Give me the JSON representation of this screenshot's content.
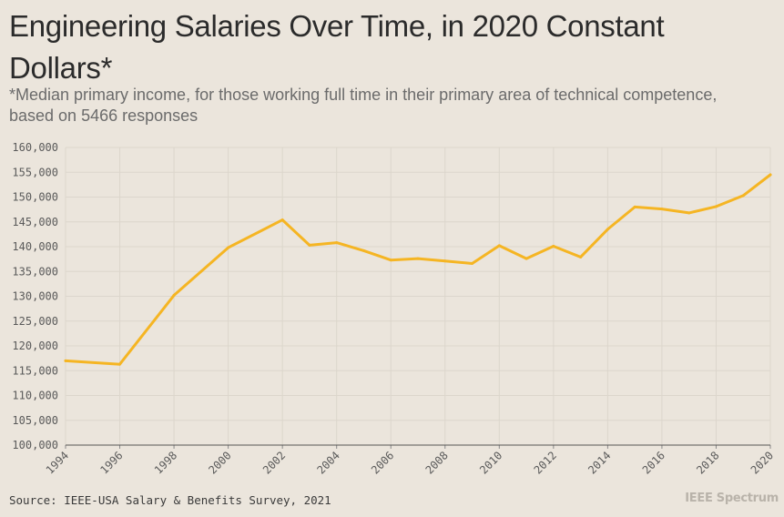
{
  "chart_data": {
    "type": "line",
    "title": "Engineering Salaries Over Time, in 2020 Constant Dollars*",
    "subtitle": "*Median primary income, for those working full time in their primary area of technical competence, based on 5466 responses",
    "source": "Source: IEEE-USA Salary & Benefits Survey, 2021",
    "brand": "IEEE Spectrum",
    "xlabel": "",
    "ylabel": "",
    "xlim": [
      1994,
      2020
    ],
    "ylim": [
      100000,
      160000
    ],
    "x_ticks": [
      1994,
      1996,
      1998,
      2000,
      2002,
      2004,
      2006,
      2008,
      2010,
      2012,
      2014,
      2016,
      2018,
      2020
    ],
    "y_ticks": [
      "100,000",
      "105,000",
      "110,000",
      "115,000",
      "120,000",
      "125,000",
      "130,000",
      "135,000",
      "140,000",
      "145,000",
      "150,000",
      "155,000",
      "160,000"
    ],
    "grid": true,
    "line_color": "#f5b523",
    "series": [
      {
        "name": "Median primary income",
        "x": [
          1994,
          1996,
          1998,
          2000,
          2002,
          2003,
          2004,
          2005,
          2006,
          2007,
          2008,
          2009,
          2010,
          2011,
          2012,
          2013,
          2014,
          2015,
          2016,
          2017,
          2018,
          2019,
          2020
        ],
        "values": [
          117000,
          116300,
          130200,
          139800,
          145400,
          140300,
          140800,
          139200,
          137300,
          137600,
          137100,
          136600,
          140200,
          137600,
          140100,
          137900,
          143500,
          148000,
          147600,
          146800,
          148100,
          150300,
          154500
        ]
      }
    ]
  }
}
